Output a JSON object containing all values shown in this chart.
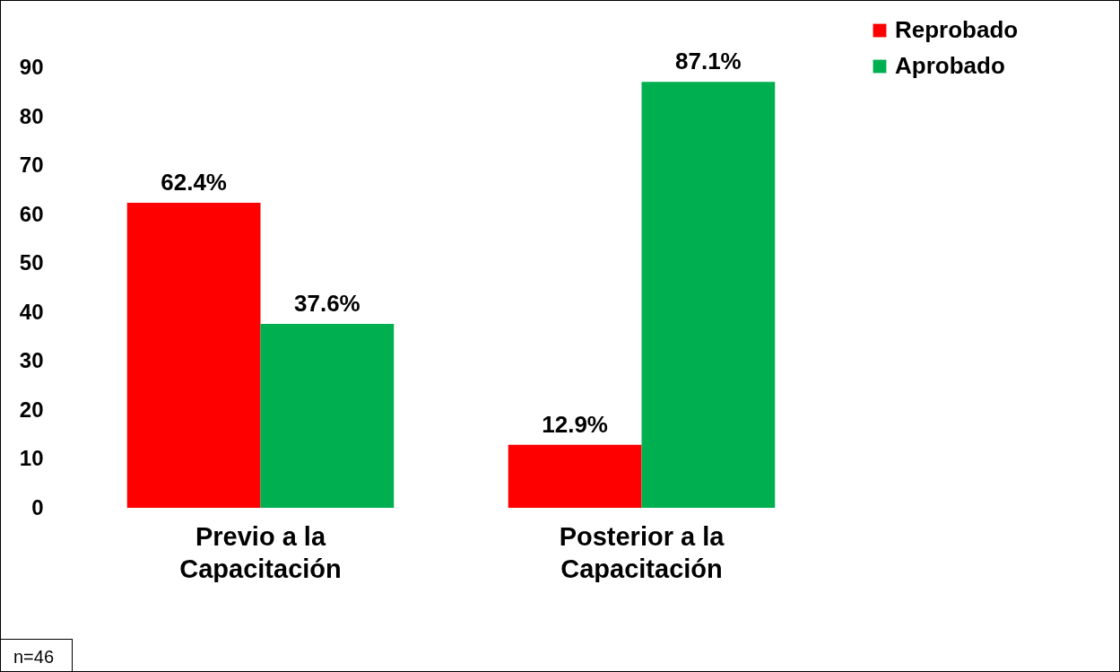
{
  "chart_data": {
    "type": "bar",
    "categories": [
      "Previo a la Capacitación",
      "Posterior a la Capacitación"
    ],
    "series": [
      {
        "name": "Reprobado",
        "color": "#ff0000",
        "values": [
          62.4,
          12.9
        ],
        "value_labels": [
          "62.4%",
          "12.9%"
        ]
      },
      {
        "name": "Aprobado",
        "color": "#00b050",
        "values": [
          37.6,
          87.1
        ],
        "value_labels": [
          "37.6%",
          "87.1%"
        ]
      }
    ],
    "ylim": [
      0,
      100
    ],
    "yticks": [
      0,
      10,
      20,
      30,
      40,
      50,
      60,
      70,
      80,
      90
    ],
    "grid": false,
    "legend": "right",
    "annotations": [
      "n=46"
    ]
  }
}
